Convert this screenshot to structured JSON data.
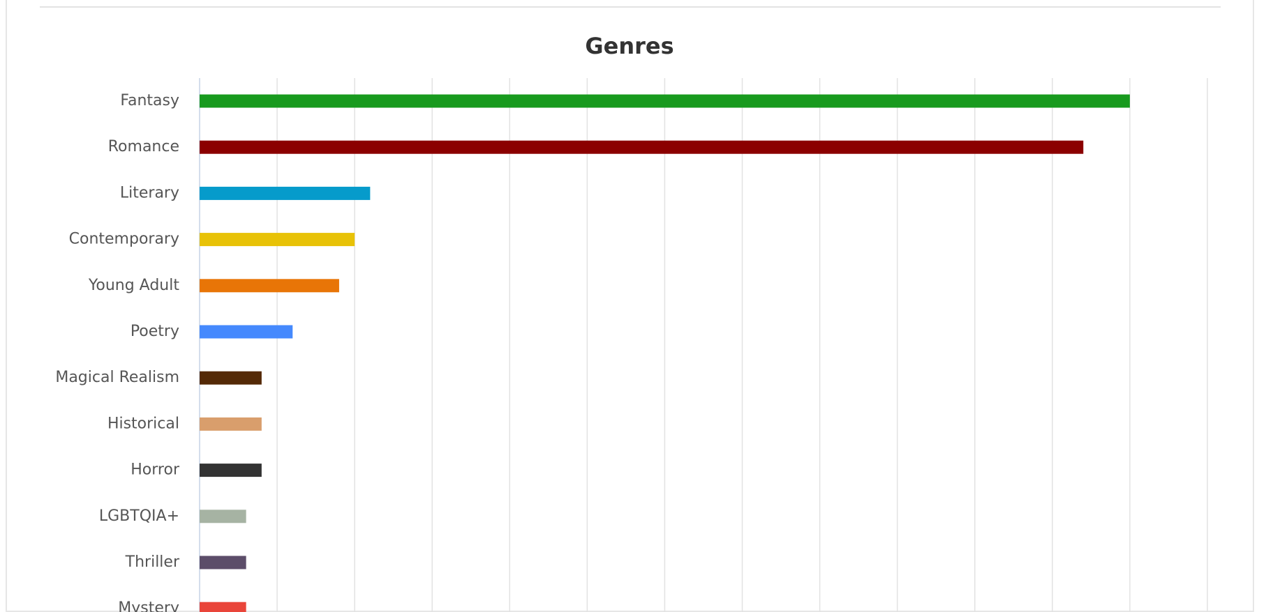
{
  "chart_data": {
    "type": "hbar",
    "title": "Genres",
    "categories": [
      "Fantasy",
      "Romance",
      "Literary",
      "Contemporary",
      "Young Adult",
      "Poetry",
      "Magical Realism",
      "Historical",
      "Horror",
      "LGBTQIA+",
      "Thriller",
      "Mystery"
    ],
    "values": [
      60,
      57,
      11,
      10,
      9,
      6,
      4,
      4,
      4,
      3,
      3,
      3
    ],
    "colors": [
      "#189a1e",
      "#8b0000",
      "#069bcb",
      "#e8c207",
      "#e87507",
      "#4589fd",
      "#542906",
      "#d99e6c",
      "#333333",
      "#a6b3a3",
      "#5c4d69",
      "#e9453a"
    ],
    "xlim": [
      0,
      65
    ],
    "xticks": [
      0,
      5,
      10,
      15,
      20,
      25,
      30,
      35,
      40,
      45,
      50,
      55,
      60,
      65
    ],
    "grid": true
  }
}
